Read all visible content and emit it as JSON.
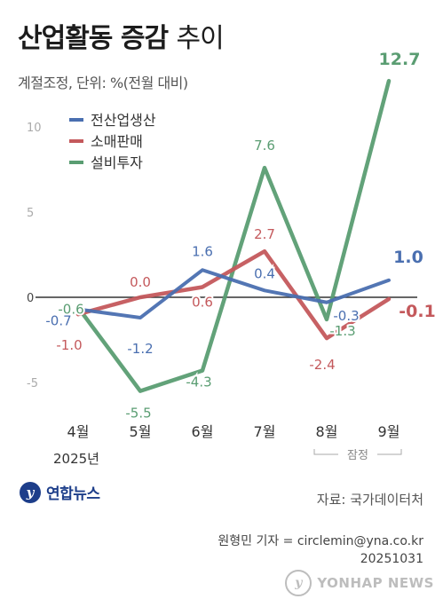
{
  "header": {
    "title_bold": "산업활동 증감",
    "title_thin": "추이",
    "subtitle": "계절조정, 단위: %(전월 대비)"
  },
  "chart_data": {
    "type": "line",
    "categories": [
      "4월",
      "5월",
      "6월",
      "7월",
      "8월",
      "9월"
    ],
    "year_label": "2025년",
    "provisional_label": "잠정",
    "ylim": [
      -6.5,
      13.5
    ],
    "yticks": [
      -5,
      0,
      5,
      10
    ],
    "legend_position": "top-left",
    "series": [
      {
        "name": "전산업생산",
        "color": "#4a6fb0",
        "values": [
          -0.7,
          -1.2,
          1.6,
          0.4,
          -0.3,
          1.0
        ]
      },
      {
        "name": "소매판매",
        "color": "#c4595c",
        "values": [
          -1.0,
          0.0,
          0.6,
          2.7,
          -2.4,
          -0.1
        ]
      },
      {
        "name": "설비투자",
        "color": "#5a9d72",
        "values": [
          -0.6,
          -5.5,
          -4.3,
          7.6,
          -1.3,
          12.7
        ]
      }
    ],
    "data_labels": [
      {
        "series": 0,
        "index": 0,
        "text": "-0.7"
      },
      {
        "series": 0,
        "index": 1,
        "text": "-1.2"
      },
      {
        "series": 0,
        "index": 2,
        "text": "1.6"
      },
      {
        "series": 0,
        "index": 3,
        "text": "0.4"
      },
      {
        "series": 0,
        "index": 4,
        "text": "-0.3"
      },
      {
        "series": 0,
        "index": 5,
        "text": "1.0"
      },
      {
        "series": 1,
        "index": 0,
        "text": "-1.0"
      },
      {
        "series": 1,
        "index": 1,
        "text": "0.0"
      },
      {
        "series": 1,
        "index": 2,
        "text": "0.6"
      },
      {
        "series": 1,
        "index": 3,
        "text": "2.7"
      },
      {
        "series": 1,
        "index": 4,
        "text": "-2.4"
      },
      {
        "series": 1,
        "index": 5,
        "text": "-0.1"
      },
      {
        "series": 2,
        "index": 0,
        "text": "-0.6"
      },
      {
        "series": 2,
        "index": 1,
        "text": "-5.5"
      },
      {
        "series": 2,
        "index": 2,
        "text": "-4.3"
      },
      {
        "series": 2,
        "index": 3,
        "text": "7.6"
      },
      {
        "series": 2,
        "index": 4,
        "text": "-1.3"
      },
      {
        "series": 2,
        "index": 5,
        "text": "12.7"
      }
    ]
  },
  "footer": {
    "logo_mark": "y",
    "logo_text": "연합뉴스",
    "source": "자료: 국가데이터처",
    "byline": "원형민 기자 = circlemin@yna.co.kr",
    "date": "20251031",
    "watermark": "YONHAP NEWS"
  }
}
